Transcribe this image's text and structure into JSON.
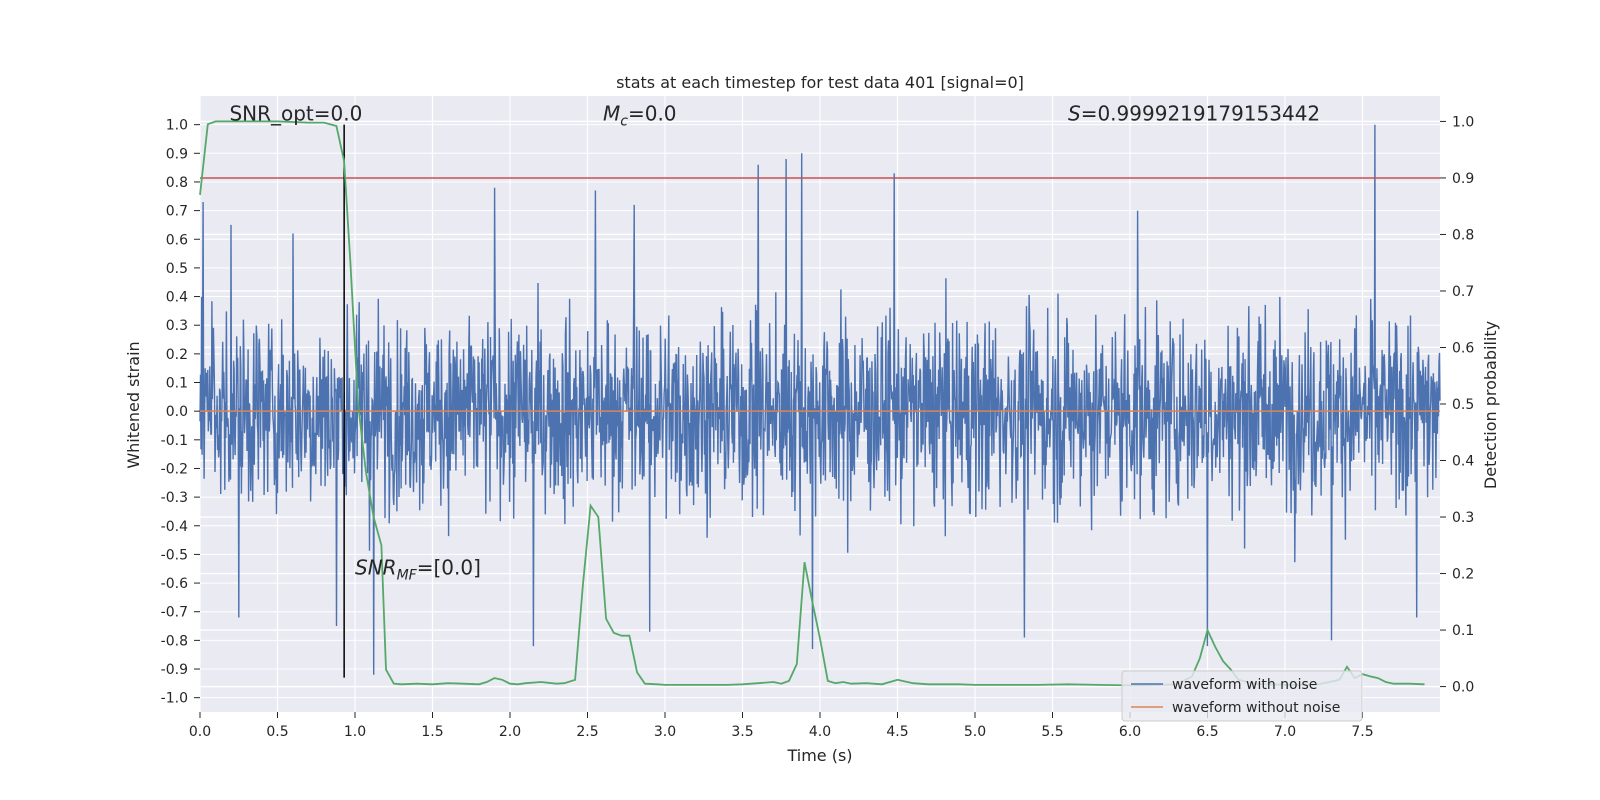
{
  "chart_data": {
    "type": "line",
    "title": "stats at each timestep for test data 401 [signal=0]",
    "xlabel": "Time (s)",
    "ylabel": "Whitened strain",
    "y2label": "Detection probability",
    "xlim": [
      0,
      8.0
    ],
    "ylim": [
      -1.05,
      1.1
    ],
    "y2lim": [
      -0.045,
      1.045
    ],
    "x_ticks": [
      "0.0",
      "0.5",
      "1.0",
      "1.5",
      "2.0",
      "2.5",
      "3.0",
      "3.5",
      "4.0",
      "4.5",
      "5.0",
      "5.5",
      "6.0",
      "6.5",
      "7.0",
      "7.5"
    ],
    "y_ticks": [
      "1.0",
      "0.9",
      "0.8",
      "0.7",
      "0.6",
      "0.5",
      "0.4",
      "0.3",
      "0.2",
      "0.1",
      "0.0",
      "-0.1",
      "-0.2",
      "-0.3",
      "-0.4",
      "-0.5",
      "-0.6",
      "-0.7",
      "-0.8",
      "-0.9",
      "-1.0"
    ],
    "y2_ticks": [
      "1.0",
      "0.9",
      "0.8",
      "0.7",
      "0.6",
      "0.5",
      "0.4",
      "0.3",
      "0.2",
      "0.1",
      "0.0"
    ],
    "grid": true,
    "legend_position": "bottom-right",
    "series": [
      {
        "name": "waveform with noise",
        "color": "#4c72b0",
        "axis": "left",
        "description": "dense whitened strain noise, amplitude roughly within ±0.5 with spikes up to about 1.0",
        "envelope_peaks": [
          [
            0.02,
            0.73
          ],
          [
            0.2,
            0.65
          ],
          [
            0.25,
            -0.72
          ],
          [
            0.6,
            0.62
          ],
          [
            0.88,
            -0.75
          ],
          [
            1.12,
            -0.92
          ],
          [
            1.9,
            0.78
          ],
          [
            2.15,
            -0.82
          ],
          [
            2.55,
            0.77
          ],
          [
            2.8,
            0.72
          ],
          [
            2.9,
            -0.77
          ],
          [
            3.6,
            0.86
          ],
          [
            3.78,
            0.88
          ],
          [
            3.88,
            0.9
          ],
          [
            3.95,
            -0.83
          ],
          [
            4.48,
            0.83
          ],
          [
            5.32,
            -0.79
          ],
          [
            6.05,
            0.7
          ],
          [
            6.5,
            -0.82
          ],
          [
            7.3,
            -0.8
          ],
          [
            7.58,
            1.0
          ],
          [
            7.85,
            -0.72
          ]
        ]
      },
      {
        "name": "waveform without noise",
        "color": "#dd8452",
        "axis": "left",
        "x": [
          0,
          8.0
        ],
        "y": [
          0,
          0
        ]
      },
      {
        "name": "",
        "color": "#55a868",
        "axis": "right",
        "x": [
          0.0,
          0.05,
          0.1,
          0.2,
          0.3,
          0.5,
          0.7,
          0.8,
          0.88,
          0.93,
          0.97,
          1.02,
          1.07,
          1.12,
          1.17,
          1.2,
          1.25,
          1.3,
          1.4,
          1.5,
          1.6,
          1.7,
          1.8,
          1.85,
          1.9,
          1.95,
          2.0,
          2.05,
          2.1,
          2.2,
          2.3,
          2.35,
          2.42,
          2.47,
          2.52,
          2.57,
          2.62,
          2.67,
          2.72,
          2.77,
          2.82,
          2.87,
          2.95,
          3.0,
          3.1,
          3.2,
          3.3,
          3.4,
          3.5,
          3.6,
          3.7,
          3.75,
          3.8,
          3.85,
          3.9,
          3.95,
          4.0,
          4.05,
          4.1,
          4.15,
          4.2,
          4.3,
          4.4,
          4.5,
          4.6,
          4.7,
          4.8,
          4.9,
          5.0,
          5.2,
          5.4,
          5.6,
          5.8,
          6.0,
          6.1,
          6.2,
          6.3,
          6.4,
          6.45,
          6.5,
          6.55,
          6.6,
          6.65,
          6.7,
          6.8,
          7.0,
          7.2,
          7.35,
          7.4,
          7.45,
          7.5,
          7.55,
          7.6,
          7.65,
          7.7,
          7.8,
          7.9
        ],
        "y": [
          0.87,
          0.995,
          1.0,
          1.0,
          1.0,
          1.0,
          0.998,
          0.998,
          0.992,
          0.93,
          0.75,
          0.5,
          0.38,
          0.3,
          0.25,
          0.03,
          0.005,
          0.004,
          0.005,
          0.004,
          0.006,
          0.005,
          0.004,
          0.008,
          0.015,
          0.012,
          0.005,
          0.004,
          0.006,
          0.008,
          0.005,
          0.006,
          0.012,
          0.18,
          0.32,
          0.3,
          0.12,
          0.095,
          0.09,
          0.09,
          0.025,
          0.005,
          0.004,
          0.003,
          0.003,
          0.003,
          0.003,
          0.003,
          0.004,
          0.006,
          0.008,
          0.005,
          0.01,
          0.04,
          0.22,
          0.15,
          0.085,
          0.01,
          0.006,
          0.008,
          0.005,
          0.006,
          0.004,
          0.012,
          0.006,
          0.004,
          0.004,
          0.004,
          0.003,
          0.003,
          0.003,
          0.004,
          0.003,
          0.002,
          0.002,
          0.003,
          0.004,
          0.018,
          0.05,
          0.1,
          0.07,
          0.045,
          0.03,
          0.012,
          0.005,
          0.003,
          0.003,
          0.012,
          0.035,
          0.015,
          0.022,
          0.018,
          0.015,
          0.008,
          0.005,
          0.005,
          0.004
        ]
      }
    ],
    "threshold_line": {
      "axis": "right",
      "value": 0.9,
      "color": "#c44e52"
    },
    "vertical_marker": {
      "x": 0.93,
      "color": "#000000",
      "y_range": [
        -0.93,
        1.0
      ]
    },
    "annotations": [
      {
        "text": "SNR_opt=0.0",
        "x": 0.19,
        "y": 1.015
      },
      {
        "text_var": "M",
        "text_sub": "c",
        "text_rest": "=0.0",
        "x": 2.6,
        "y": 1.015
      },
      {
        "text_var": "S",
        "text_rest": "=0.9999219179153442",
        "x": 5.6,
        "y": 1.015
      },
      {
        "text_var": "SNR",
        "text_sub": "MF",
        "text_rest": "=[0.0]",
        "x": 1.0,
        "y": -0.57
      }
    ]
  }
}
